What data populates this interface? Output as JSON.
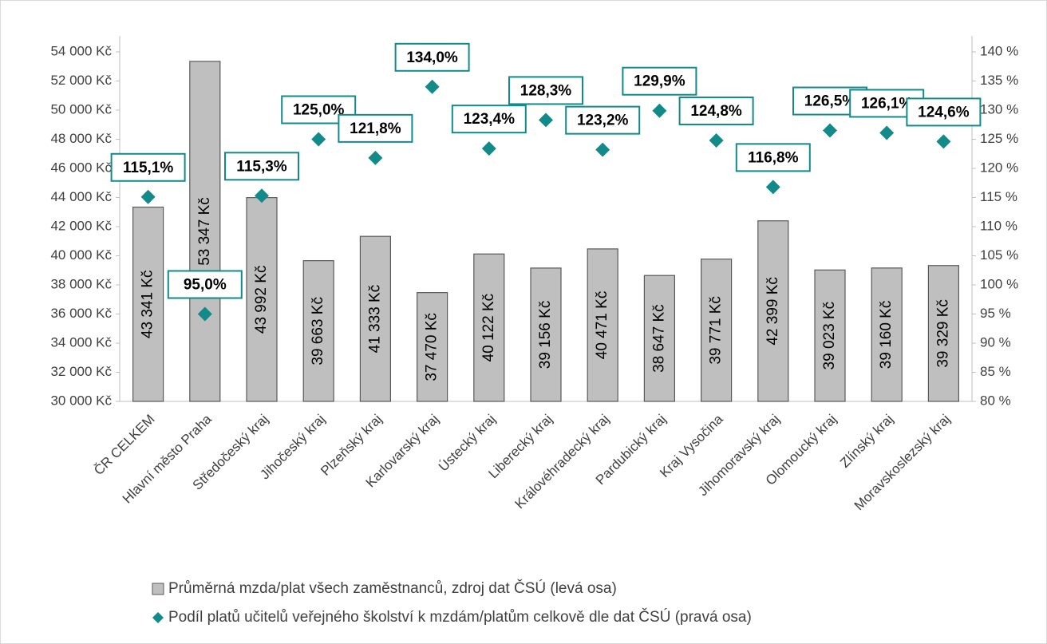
{
  "chart_data": {
    "type": "bar",
    "categories": [
      "ČR CELKEM",
      "Hlavní město Praha",
      "Středočeský kraj",
      "Jihočeský kraj",
      "Plzeňský kraj",
      "Karlovarský kraj",
      "Ústecký kraj",
      "Liberecký kraj",
      "Královéhradecký kraj",
      "Pardubický kraj",
      "Kraj Vysočina",
      "Jihomoravský kraj",
      "Olomoucký kraj",
      "Zlínský kraj",
      "Moravskoslezský kraj"
    ],
    "series": [
      {
        "name": "Průměrná mzda/plat všech zaměstnanců, zdroj dat ČSÚ (levá osa)",
        "type": "bar",
        "color": "#bfbfbf",
        "values": [
          43341,
          53347,
          43992,
          39663,
          41333,
          37470,
          40122,
          39156,
          40471,
          38647,
          39771,
          42399,
          39023,
          39160,
          39329
        ],
        "value_labels": [
          "43 341 Kč",
          "53 347 Kč",
          "43 992 Kč",
          "39 663 Kč",
          "41 333 Kč",
          "37 470 Kč",
          "40 122 Kč",
          "39 156 Kč",
          "40 471 Kč",
          "38 647 Kč",
          "39 771 Kč",
          "42 399 Kč",
          "39 023 Kč",
          "39 160 Kč",
          "39 329 Kč"
        ]
      },
      {
        "name": "Podíl platů učitelů veřejného školství k mzdám/platům celkově dle dat ČSÚ (pravá osa)",
        "type": "scatter",
        "axis": "y2",
        "color": "#138a8a",
        "values": [
          115.1,
          95.0,
          115.3,
          125.0,
          121.8,
          134.0,
          123.4,
          128.3,
          123.2,
          129.9,
          124.8,
          116.8,
          126.5,
          126.1,
          124.6
        ],
        "value_labels": [
          "115,1%",
          "95,0%",
          "115,3%",
          "125,0%",
          "121,8%",
          "134,0%",
          "123,4%",
          "128,3%",
          "123,2%",
          "129,9%",
          "124,8%",
          "116,8%",
          "126,5%",
          "126,1%",
          "124,6%"
        ]
      }
    ],
    "ylim": [
      30000,
      54000
    ],
    "yticks": [
      {
        "value": 30000,
        "label": "30 000 Kč"
      },
      {
        "value": 32000,
        "label": "32 000 Kč"
      },
      {
        "value": 34000,
        "label": "34 000 Kč"
      },
      {
        "value": 36000,
        "label": "36 000 Kč"
      },
      {
        "value": 38000,
        "label": "38 000 Kč"
      },
      {
        "value": 40000,
        "label": "40 000 Kč"
      },
      {
        "value": 42000,
        "label": "42 000 Kč"
      },
      {
        "value": 44000,
        "label": "44 000 Kč"
      },
      {
        "value": 46000,
        "label": "46 000 Kč"
      },
      {
        "value": 48000,
        "label": "48 000 Kč"
      },
      {
        "value": 50000,
        "label": "50 000 Kč"
      },
      {
        "value": 52000,
        "label": "52 000 Kč"
      },
      {
        "value": 54000,
        "label": "54 000 Kč"
      }
    ],
    "y2lim": [
      80,
      140
    ],
    "y2ticks": [
      {
        "value": 80,
        "label": "80 %"
      },
      {
        "value": 85,
        "label": "85 %"
      },
      {
        "value": 90,
        "label": "90 %"
      },
      {
        "value": 95,
        "label": "95 %"
      },
      {
        "value": 100,
        "label": "100 %"
      },
      {
        "value": 105,
        "label": "105 %"
      },
      {
        "value": 110,
        "label": "110 %"
      },
      {
        "value": 115,
        "label": "115 %"
      },
      {
        "value": 120,
        "label": "120 %"
      },
      {
        "value": 125,
        "label": "125 %"
      },
      {
        "value": 130,
        "label": "130 %"
      },
      {
        "value": 135,
        "label": "135 %"
      },
      {
        "value": 140,
        "label": "140 %"
      }
    ],
    "grid": false,
    "legend": "bottom"
  }
}
